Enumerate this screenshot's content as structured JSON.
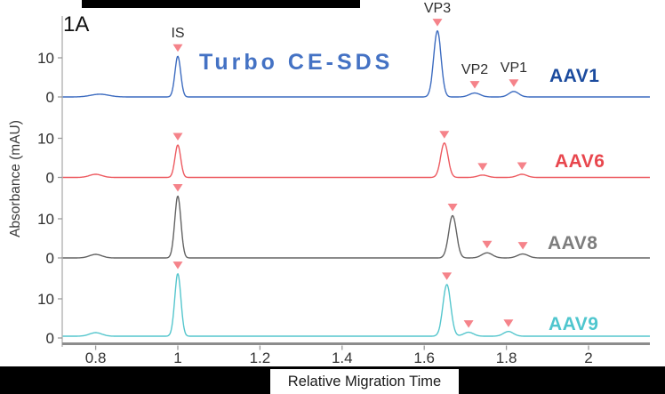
{
  "figure": {
    "panel_tag": "1A",
    "title": "Turbo CE-SDS",
    "xlabel": "Relative Migration Time",
    "ylabel": "Absorbance (mAU)"
  },
  "chart_data": {
    "type": "line",
    "title": "Turbo CE-SDS",
    "title_color": "#4472c4",
    "xlabel": "Relative Migration Time",
    "ylabel": "Absorbance (mAU)",
    "x_range": [
      0.72,
      2.15
    ],
    "x_ticks": [
      "0.8",
      "1",
      "1.2",
      "1.4",
      "1.6",
      "1.8",
      "2"
    ],
    "x_tick_values": [
      0.8,
      1,
      1.2,
      1.4,
      1.6,
      1.8,
      2
    ],
    "y_tick_labels_per_panel": [
      "0",
      "10"
    ],
    "y_tick_values": [
      0,
      10
    ],
    "y_unit": "mAU",
    "grid": false,
    "marker_color": "#f5838a",
    "peak_labels": [
      {
        "label": "IS",
        "t": 1.0
      },
      {
        "label": "VP3",
        "t": 1.632
      },
      {
        "label": "VP2",
        "t": 1.723
      },
      {
        "label": "VP1",
        "t": 1.818
      }
    ],
    "traces": [
      {
        "name": "AAV1",
        "color": "#3d6cc0",
        "label_color": "#1b4b9e",
        "peaks": [
          {
            "t": 0.81,
            "h": 0.7,
            "w": 0.022
          },
          {
            "t": 1.0,
            "h": 10.4,
            "w": 0.007
          },
          {
            "t": 1.632,
            "h": 16.9,
            "w": 0.009
          },
          {
            "t": 1.723,
            "h": 1.0,
            "w": 0.013
          },
          {
            "t": 1.818,
            "h": 1.4,
            "w": 0.012
          }
        ],
        "markers": [
          1.0,
          1.632,
          1.723,
          1.818
        ]
      },
      {
        "name": "AAV6",
        "color": "#ed5a60",
        "label_color": "#e8464d",
        "peaks": [
          {
            "t": 0.8,
            "h": 0.8,
            "w": 0.015
          },
          {
            "t": 1.0,
            "h": 8.3,
            "w": 0.007
          },
          {
            "t": 1.649,
            "h": 8.8,
            "w": 0.009
          },
          {
            "t": 1.742,
            "h": 0.6,
            "w": 0.012
          },
          {
            "t": 1.838,
            "h": 0.8,
            "w": 0.012
          }
        ],
        "markers": [
          1.0,
          1.649,
          1.742,
          1.838
        ]
      },
      {
        "name": "AAV8",
        "color": "#636363",
        "label_color": "#7d7d7d",
        "peaks": [
          {
            "t": 0.8,
            "h": 0.9,
            "w": 0.015
          },
          {
            "t": 1.0,
            "h": 15.8,
            "w": 0.0075
          },
          {
            "t": 1.669,
            "h": 10.8,
            "w": 0.0095
          },
          {
            "t": 1.753,
            "h": 1.3,
            "w": 0.013
          },
          {
            "t": 1.84,
            "h": 1.0,
            "w": 0.013
          }
        ],
        "markers": [
          1.0,
          1.669,
          1.753,
          1.84
        ]
      },
      {
        "name": "AAV9",
        "color": "#55c6cd",
        "label_color": "#4fc6ce",
        "peaks": [
          {
            "t": 0.8,
            "h": 0.9,
            "w": 0.015
          },
          {
            "t": 1.0,
            "h": 16.0,
            "w": 0.0075
          },
          {
            "t": 1.655,
            "h": 13.2,
            "w": 0.0095
          },
          {
            "t": 1.708,
            "h": 1.0,
            "w": 0.012
          },
          {
            "t": 1.805,
            "h": 1.2,
            "w": 0.012
          }
        ],
        "markers": [
          1.0,
          1.655,
          1.708,
          1.805
        ]
      }
    ]
  }
}
